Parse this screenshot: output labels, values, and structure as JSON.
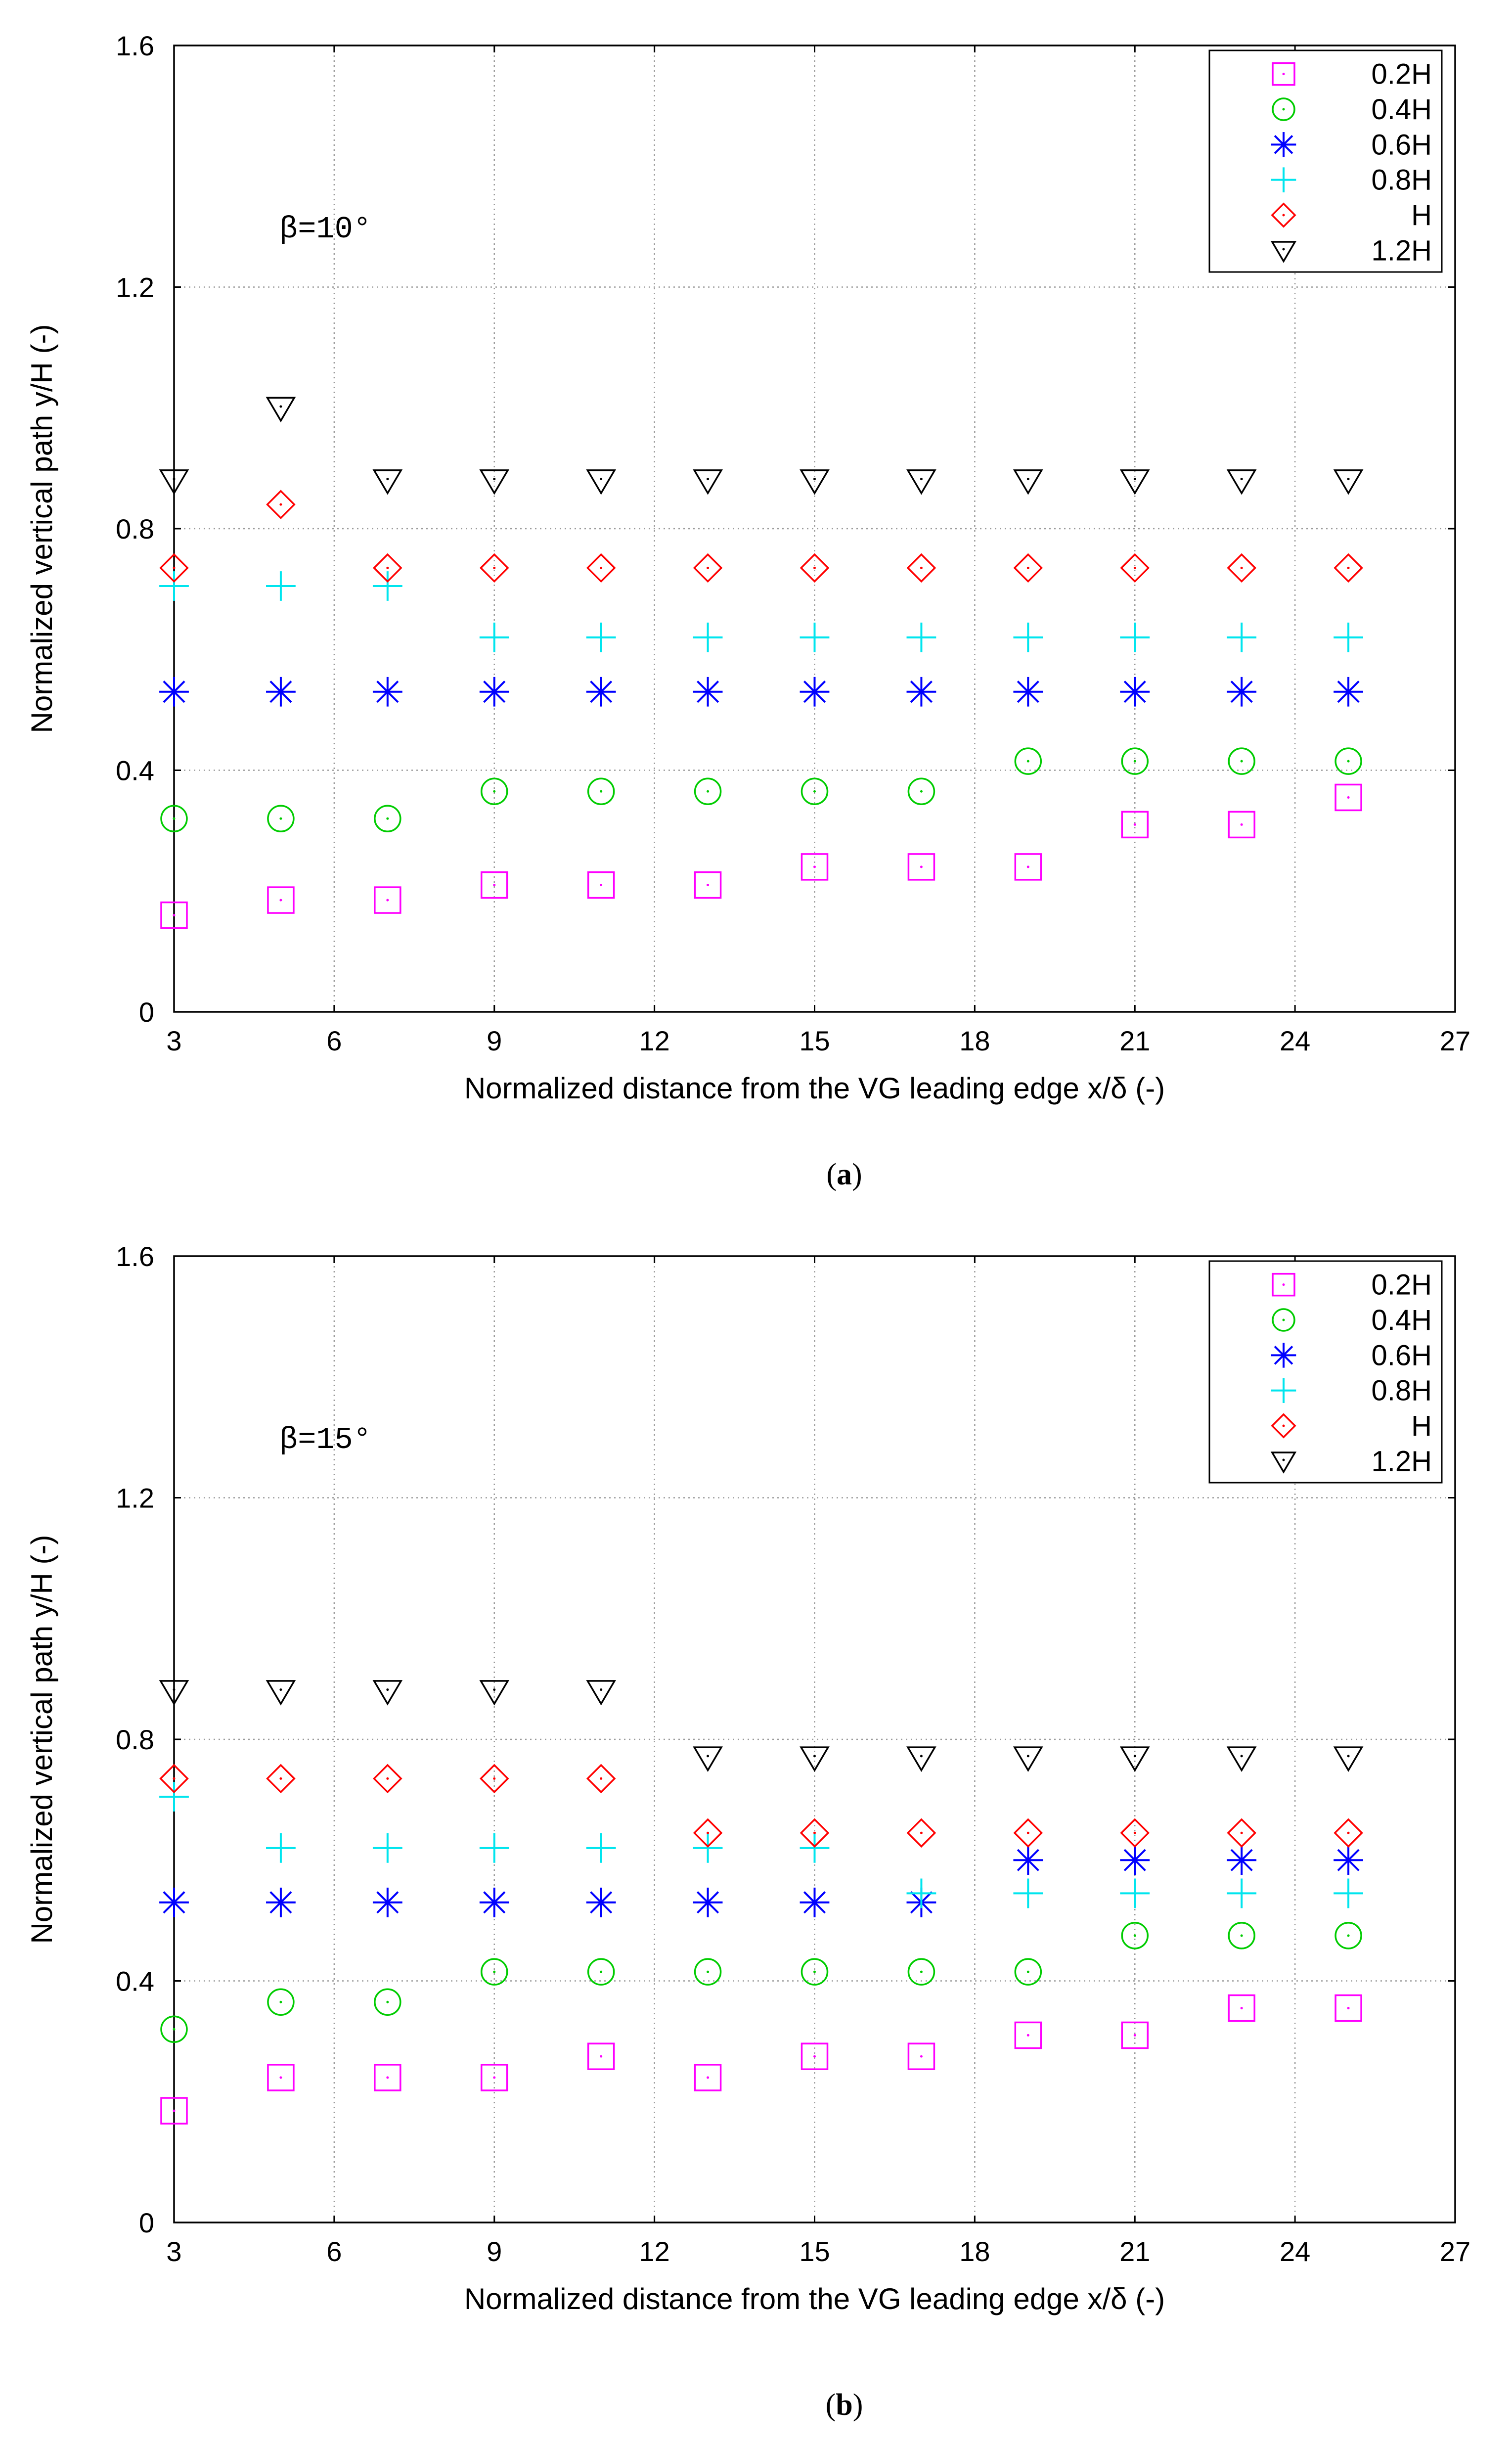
{
  "chart_data": [
    {
      "type": "scatter",
      "panel_caption": "(a)",
      "caption_letter": "a",
      "annotation": "β=10°",
      "xlabel": "Normalized distance from the VG leading edge x/δ (-)",
      "ylabel": "Normalized vertical path y/H (-)",
      "xlim": [
        3,
        27
      ],
      "ylim": [
        0,
        1.6
      ],
      "xticks": [
        3,
        6,
        9,
        12,
        15,
        18,
        21,
        24,
        27
      ],
      "yticks": [
        0,
        0.4,
        0.8,
        1.2,
        1.6
      ],
      "ytick_labels": [
        "0",
        "0.4",
        "0.8",
        "1.2",
        "1.6"
      ],
      "grid": true,
      "legend_position": "top-right",
      "x": [
        3,
        5,
        7,
        9,
        11,
        13,
        15,
        17,
        19,
        21,
        23,
        25
      ],
      "series": [
        {
          "name": "0.2H",
          "marker": "square",
          "color": "#ff00ff",
          "values": [
            0.16,
            0.185,
            0.185,
            0.21,
            0.21,
            0.21,
            0.24,
            0.24,
            0.24,
            0.31,
            0.31,
            0.355
          ]
        },
        {
          "name": "0.4H",
          "marker": "circle",
          "color": "#00cc00",
          "values": [
            0.32,
            0.32,
            0.32,
            0.365,
            0.365,
            0.365,
            0.365,
            0.365,
            0.415,
            0.415,
            0.415,
            0.415
          ]
        },
        {
          "name": "0.6H",
          "marker": "asterisk",
          "color": "#0000ff",
          "values": [
            0.53,
            0.53,
            0.53,
            0.53,
            0.53,
            0.53,
            0.53,
            0.53,
            0.53,
            0.53,
            0.53,
            0.53
          ]
        },
        {
          "name": "0.8H",
          "marker": "plus",
          "color": "#00e5ee",
          "values": [
            0.705,
            0.705,
            0.705,
            0.62,
            0.62,
            0.62,
            0.62,
            0.62,
            0.62,
            0.62,
            0.62,
            0.62
          ]
        },
        {
          "name": "H",
          "marker": "diamond",
          "color": "#ff0000",
          "values": [
            0.735,
            0.84,
            0.735,
            0.735,
            0.735,
            0.735,
            0.735,
            0.735,
            0.735,
            0.735,
            0.735,
            0.735
          ]
        },
        {
          "name": "1.2H",
          "marker": "triangle-down",
          "color": "#000000",
          "values": [
            0.88,
            1.0,
            0.88,
            0.88,
            0.88,
            0.88,
            0.88,
            0.88,
            0.88,
            0.88,
            0.88,
            0.88
          ]
        }
      ]
    },
    {
      "type": "scatter",
      "panel_caption": "(b)",
      "caption_letter": "b",
      "annotation": "β=15°",
      "xlabel": "Normalized distance from the VG leading edge x/δ (-)",
      "ylabel": "Normalized vertical path y/H (-)",
      "xlim": [
        3,
        27
      ],
      "ylim": [
        0,
        1.6
      ],
      "xticks": [
        3,
        6,
        9,
        12,
        15,
        18,
        21,
        24,
        27
      ],
      "yticks": [
        0,
        0.4,
        0.8,
        1.2,
        1.6
      ],
      "ytick_labels": [
        "0",
        "0.4",
        "0.8",
        "1.2",
        "1.6"
      ],
      "grid": true,
      "legend_position": "top-right",
      "x": [
        3,
        5,
        7,
        9,
        11,
        13,
        15,
        17,
        19,
        21,
        23,
        25
      ],
      "series": [
        {
          "name": "0.2H",
          "marker": "square",
          "color": "#ff00ff",
          "values": [
            0.185,
            0.24,
            0.24,
            0.24,
            0.275,
            0.24,
            0.275,
            0.275,
            0.31,
            0.31,
            0.355,
            0.355
          ]
        },
        {
          "name": "0.4H",
          "marker": "circle",
          "color": "#00cc00",
          "values": [
            0.32,
            0.365,
            0.365,
            0.415,
            0.415,
            0.415,
            0.415,
            0.415,
            0.415,
            0.475,
            0.475,
            0.475
          ]
        },
        {
          "name": "0.6H",
          "marker": "asterisk",
          "color": "#0000ff",
          "values": [
            0.53,
            0.53,
            0.53,
            0.53,
            0.53,
            0.53,
            0.53,
            0.53,
            0.6,
            0.6,
            0.6,
            0.6
          ]
        },
        {
          "name": "0.8H",
          "marker": "plus",
          "color": "#00e5ee",
          "values": [
            0.705,
            0.62,
            0.62,
            0.62,
            0.62,
            0.62,
            0.62,
            0.545,
            0.545,
            0.545,
            0.545,
            0.545
          ]
        },
        {
          "name": "H",
          "marker": "diamond",
          "color": "#ff0000",
          "values": [
            0.735,
            0.735,
            0.735,
            0.735,
            0.735,
            0.645,
            0.645,
            0.645,
            0.645,
            0.645,
            0.645,
            0.645
          ]
        },
        {
          "name": "1.2H",
          "marker": "triangle-down",
          "color": "#000000",
          "values": [
            0.88,
            0.88,
            0.88,
            0.88,
            0.88,
            0.77,
            0.77,
            0.77,
            0.77,
            0.77,
            0.77,
            0.77
          ]
        }
      ]
    }
  ]
}
